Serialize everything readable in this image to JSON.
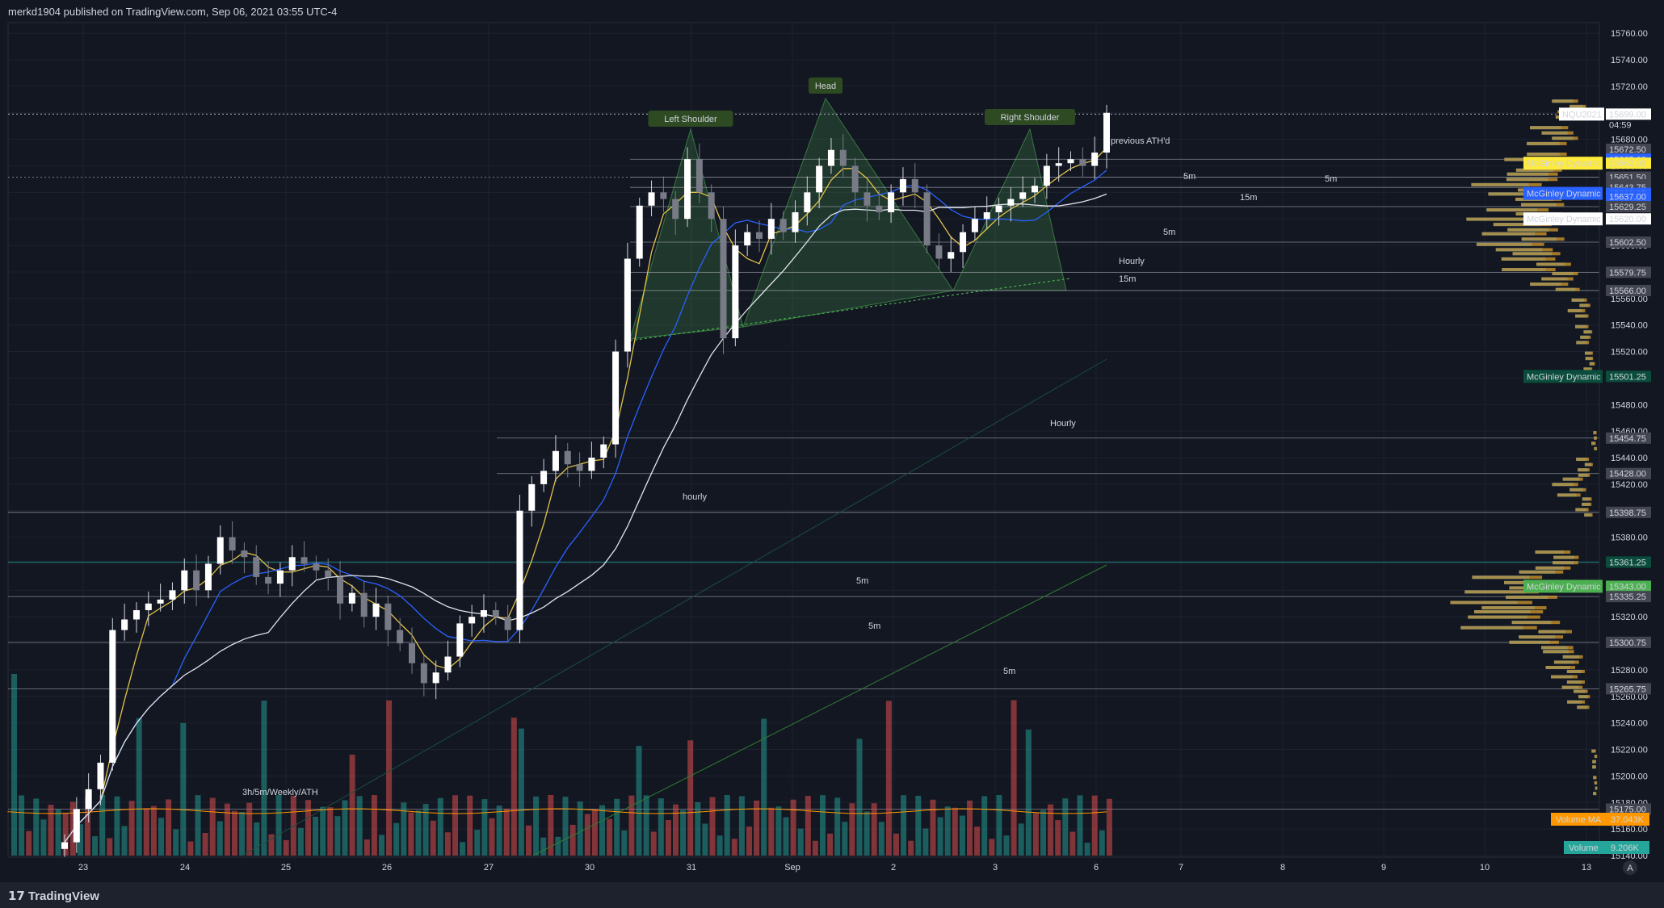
{
  "header": {
    "published": "merkd1904 published on TradingView.com, Sep 06, 2021 03:55 UTC-4"
  },
  "footer": {
    "brand": "TradingView",
    "brand_icon": "tradingview-logo-icon"
  },
  "symbol": "NQU2021",
  "countdown": "04:59",
  "colors": {
    "bg": "#131722",
    "up": "#ffffff",
    "down": "#787b86",
    "ma_fast": "#e3c34a",
    "ma_mid": "#2962ff",
    "ma_slow": "#e0e3eb",
    "vol_up": "#26a69a",
    "vol_down": "#ef5350",
    "vol_ma": "#ff9800",
    "pattern": "#4caf50"
  },
  "chart_data": {
    "type": "candlestick",
    "y_axis_ticks": [
      15760,
      15740,
      15720,
      15700,
      15680,
      15660,
      15640,
      15620,
      15600,
      15580,
      15560,
      15540,
      15520,
      15500,
      15480,
      15460,
      15440,
      15420,
      15400,
      15380,
      15360,
      15340,
      15320,
      15300,
      15280,
      15260,
      15240,
      15220,
      15200,
      15180,
      15160,
      15140
    ],
    "ylim": [
      15140,
      15768
    ],
    "x_axis_labels": [
      "23",
      "24",
      "25",
      "26",
      "27",
      "30",
      "31",
      "Sep",
      "2",
      "3",
      "6",
      "7",
      "8",
      "9",
      "10",
      "13"
    ],
    "candle_closes_approx": [
      15150,
      15175,
      15190,
      15210,
      15310,
      15318,
      15325,
      15330,
      15333,
      15340,
      15355,
      15340,
      15360,
      15380,
      15370,
      15365,
      15350,
      15345,
      15355,
      15365,
      15360,
      15355,
      15350,
      15330,
      15338,
      15320,
      15330,
      15310,
      15300,
      15285,
      15270,
      15278,
      15290,
      15315,
      15320,
      15325,
      15320,
      15310,
      15400,
      15420,
      15430,
      15445,
      15435,
      15430,
      15440,
      15450,
      15520,
      15590,
      15630,
      15640,
      15635,
      15620,
      15665,
      15640,
      15620,
      15530,
      15600,
      15610,
      15605,
      15620,
      15610,
      15625,
      15640,
      15660,
      15672,
      15660,
      15640,
      15630,
      15625,
      15640,
      15650,
      15640,
      15600,
      15590,
      15595,
      15610,
      15620,
      15625,
      15630,
      15635,
      15640,
      15645,
      15660,
      15662,
      15665,
      15660,
      15670,
      15700
    ],
    "horizontal_levels": [
      15665.0,
      15651.5,
      15643.75,
      15629.25,
      15602.5,
      15579.75,
      15566.0,
      15454.75,
      15428.0,
      15398.75,
      15361.25,
      15335.25,
      15300.75,
      15265.75,
      15175.0
    ],
    "price_labels": [
      {
        "text": "15699.00",
        "type": "last"
      },
      {
        "text": "15672.50",
        "type": "grey"
      },
      {
        "text": "15665.00",
        "type": "blue"
      },
      {
        "text": "15662.00",
        "type": "yellow"
      },
      {
        "text": "15651.50",
        "type": "grey"
      },
      {
        "text": "15645.75",
        "type": "grey"
      },
      {
        "text": "15643.75",
        "type": "grey"
      },
      {
        "text": "15639.25",
        "type": "blue"
      },
      {
        "text": "15637.00",
        "type": "blue"
      },
      {
        "text": "15629.25",
        "type": "grey"
      },
      {
        "text": "15620.00",
        "type": "white"
      },
      {
        "text": "15602.50",
        "type": "grey"
      },
      {
        "text": "15579.75",
        "type": "grey"
      },
      {
        "text": "15566.00",
        "type": "grey"
      },
      {
        "text": "15501.25",
        "type": "teal"
      },
      {
        "text": "15454.75",
        "type": "grey"
      },
      {
        "text": "15428.00",
        "type": "grey"
      },
      {
        "text": "15398.75",
        "type": "grey"
      },
      {
        "text": "15361.25",
        "type": "teal"
      },
      {
        "text": "15343.00",
        "type": "green"
      },
      {
        "text": "15335.25",
        "type": "grey"
      },
      {
        "text": "15300.75",
        "type": "grey"
      },
      {
        "text": "15265.75",
        "type": "grey"
      },
      {
        "text": "15175.00",
        "type": "grey"
      }
    ],
    "indicator_tags": [
      {
        "text": "McGinley Dynamic",
        "style": "yellow"
      },
      {
        "text": "McGinley Dynamic",
        "style": "blue"
      },
      {
        "text": "McGinley Dynamic",
        "style": "white"
      },
      {
        "text": "McGinley Dynamic",
        "style": "teal"
      },
      {
        "text": "McGinley Dynamic",
        "style": "green"
      }
    ],
    "volume_ma": {
      "label": "Volume MA",
      "value": "37.043K"
    },
    "volume": {
      "label": "Volume",
      "value": "9.206K"
    },
    "annotations": [
      "Left Shoulder",
      "Head",
      "Right Shoulder"
    ],
    "drawing_labels": [
      "previous ATH'd",
      "5m",
      "5m",
      "15m",
      "5m",
      "Hourly",
      "15m",
      "Hourly",
      "hourly",
      "5m",
      "5m",
      "5m",
      "3h/5m/Weekly/ATH"
    ]
  }
}
